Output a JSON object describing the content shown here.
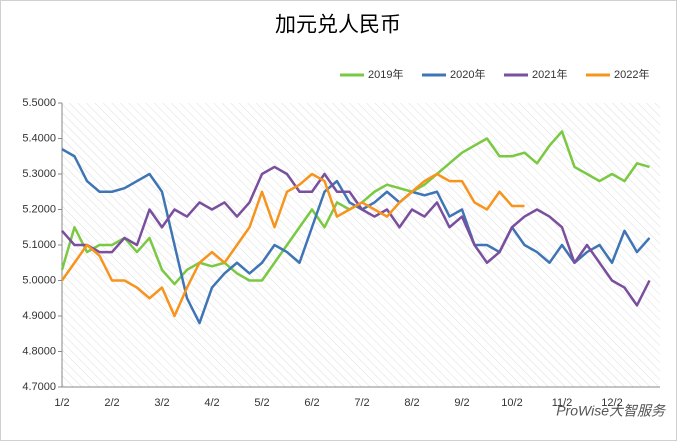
{
  "chart_data": {
    "type": "line",
    "title": "加元兑人民币",
    "categories": [
      "1/2",
      null,
      null,
      null,
      "2/2",
      null,
      null,
      null,
      "3/2",
      null,
      null,
      null,
      "4/2",
      null,
      null,
      null,
      "5/2",
      null,
      null,
      null,
      "6/2",
      null,
      null,
      null,
      "7/2",
      null,
      null,
      null,
      "8/2",
      null,
      null,
      null,
      "9/2",
      null,
      null,
      null,
      "10/2",
      null,
      null,
      null,
      "11/2",
      null,
      null,
      null,
      "12/2",
      null,
      null,
      null
    ],
    "series": [
      {
        "name": "2019年",
        "color": "#7ac943",
        "values": [
          5.03,
          5.15,
          5.08,
          5.1,
          5.1,
          5.12,
          5.08,
          5.12,
          5.03,
          4.99,
          5.03,
          5.05,
          5.04,
          5.05,
          5.02,
          5.0,
          5.0,
          5.05,
          5.1,
          5.15,
          5.2,
          5.15,
          5.22,
          5.2,
          5.22,
          5.25,
          5.27,
          5.26,
          5.25,
          5.27,
          5.3,
          5.33,
          5.36,
          5.38,
          5.4,
          5.35,
          5.35,
          5.36,
          5.33,
          5.38,
          5.42,
          5.32,
          5.3,
          5.28,
          5.3,
          5.28,
          5.33,
          5.32
        ]
      },
      {
        "name": "2020年",
        "color": "#3f74b5",
        "values": [
          5.37,
          5.35,
          5.28,
          5.25,
          5.25,
          5.26,
          5.28,
          5.3,
          5.25,
          5.1,
          4.95,
          4.88,
          4.98,
          5.02,
          5.05,
          5.02,
          5.05,
          5.1,
          5.08,
          5.05,
          5.15,
          5.25,
          5.28,
          5.22,
          5.2,
          5.22,
          5.25,
          5.22,
          5.25,
          5.24,
          5.25,
          5.18,
          5.2,
          5.1,
          5.1,
          5.08,
          5.15,
          5.1,
          5.08,
          5.05,
          5.1,
          5.05,
          5.08,
          5.1,
          5.05,
          5.14,
          5.08,
          5.12
        ]
      },
      {
        "name": "2021年",
        "color": "#7a4f9e",
        "values": [
          5.14,
          5.1,
          5.1,
          5.08,
          5.08,
          5.12,
          5.1,
          5.2,
          5.15,
          5.2,
          5.18,
          5.22,
          5.2,
          5.22,
          5.18,
          5.22,
          5.3,
          5.32,
          5.3,
          5.25,
          5.25,
          5.3,
          5.25,
          5.25,
          5.2,
          5.18,
          5.2,
          5.15,
          5.2,
          5.18,
          5.22,
          5.15,
          5.18,
          5.1,
          5.05,
          5.08,
          5.15,
          5.18,
          5.2,
          5.18,
          5.15,
          5.05,
          5.1,
          5.05,
          5.0,
          4.98,
          4.93,
          5.0
        ]
      },
      {
        "name": "2022年",
        "color": "#f7941d",
        "values": [
          5.0,
          5.05,
          5.1,
          5.07,
          5.0,
          5.0,
          4.98,
          4.95,
          4.98,
          4.9,
          4.98,
          5.05,
          5.08,
          5.05,
          5.1,
          5.15,
          5.25,
          5.15,
          5.25,
          5.27,
          5.3,
          5.28,
          5.18,
          5.2,
          5.22,
          5.2,
          5.18,
          5.22,
          5.25,
          5.28,
          5.3,
          5.28,
          5.28,
          5.22,
          5.2,
          5.25,
          5.21,
          5.21,
          null,
          null,
          null,
          null,
          null,
          null,
          null,
          null,
          null,
          null
        ]
      }
    ],
    "ylim": [
      4.7,
      5.5
    ],
    "yticks": [
      {
        "value": 4.7,
        "label": "4.7000"
      },
      {
        "value": 4.8,
        "label": "4.8000"
      },
      {
        "value": 4.9,
        "label": "4.9000"
      },
      {
        "value": 5.0,
        "label": "5.0000"
      },
      {
        "value": 5.1,
        "label": "5.1000"
      },
      {
        "value": 5.2,
        "label": "5.2000"
      },
      {
        "value": 5.3,
        "label": "5.3000"
      },
      {
        "value": 5.4,
        "label": "5.4000"
      },
      {
        "value": 5.5,
        "label": "5.5000"
      }
    ],
    "legend": "top-right",
    "watermark": "ProWise大智服务"
  }
}
